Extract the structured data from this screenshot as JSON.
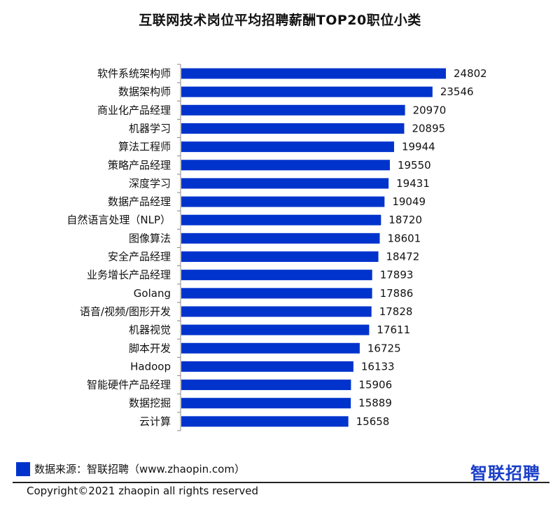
{
  "chart_data": {
    "type": "bar",
    "orientation": "horizontal",
    "title": "互联网技术岗位平均招聘薪酬TOP20职位小类",
    "categories": [
      "软件系统架构师",
      "数据架构师",
      "商业化产品经理",
      "机器学习",
      "算法工程师",
      "策略产品经理",
      "深度学习",
      "数据产品经理",
      "自然语言处理（NLP）",
      "图像算法",
      "安全产品经理",
      "业务增长产品经理",
      "Golang",
      "语音/视频/图形开发",
      "机器视觉",
      "脚本开发",
      "Hadoop",
      "智能硬件产品经理",
      "数据挖掘",
      "云计算"
    ],
    "values": [
      24802,
      23546,
      20970,
      20895,
      19944,
      19550,
      19431,
      19049,
      18720,
      18601,
      18472,
      17893,
      17886,
      17828,
      17611,
      16725,
      16133,
      15906,
      15889,
      15658
    ],
    "xlim": [
      0,
      24802
    ],
    "bar_color": "#0033cc",
    "grid": false,
    "legend": "none"
  },
  "footer": {
    "source": "数据来源：智联招聘（www.zhaopin.com）",
    "brand": "智联招聘",
    "copyright": "Copyright©2021 zhaopin all rights reserved"
  }
}
